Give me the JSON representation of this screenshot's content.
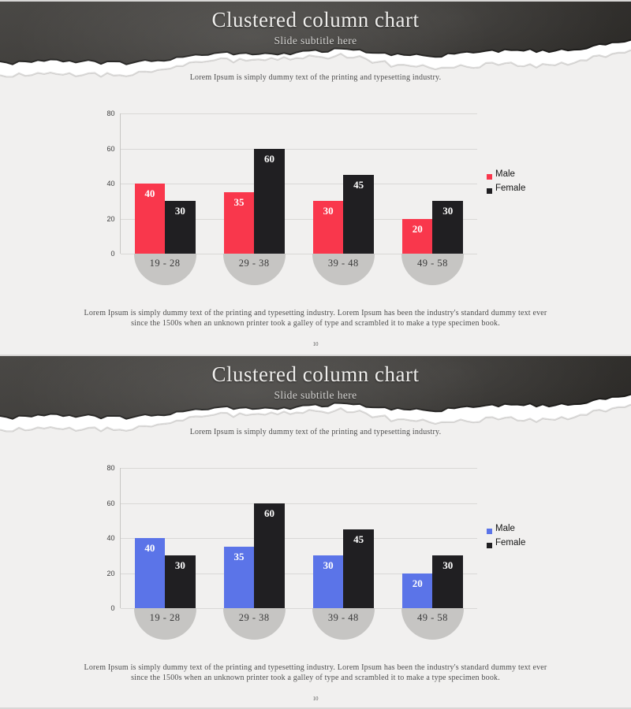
{
  "slides": [
    {
      "header": {
        "title": "Clustered column chart",
        "subtitle": "Slide subtitle here"
      },
      "intro": "Lorem Ipsum is simply dummy text of the printing and typesetting industry.",
      "footer_lines": [
        "Lorem Ipsum is simply dummy text of the printing and typesetting industry. Lorem Ipsum has been the industry's standard dummy text ever",
        "since the 1500s when an unknown printer took a galley of type and scrambled it to make a type specimen book."
      ],
      "page_number": "10"
    },
    {
      "header": {
        "title": "Clustered column chart",
        "subtitle": "Slide subtitle here"
      },
      "intro": "Lorem Ipsum is simply dummy text of the printing and typesetting industry.",
      "footer_lines": [
        "Lorem Ipsum is simply dummy text of the printing and typesetting industry. Lorem Ipsum has been the industry's standard dummy text ever",
        "since the 1500s when an unknown printer took a galley of type and scrambled it to make a type specimen book."
      ],
      "page_number": "10"
    }
  ],
  "chart_data": [
    {
      "type": "bar",
      "title": "",
      "categories": [
        "19 - 28",
        "29 - 38",
        "39 - 48",
        "49 - 58"
      ],
      "series": [
        {
          "name": "Male",
          "color": "#f9374c",
          "values": [
            40,
            35,
            30,
            20
          ]
        },
        {
          "name": "Female",
          "color": "#201f22",
          "values": [
            30,
            60,
            45,
            30
          ]
        }
      ],
      "xlabel": "",
      "ylabel": "",
      "ylim": [
        0,
        80
      ],
      "yticks": [
        0,
        20,
        40,
        60,
        80
      ],
      "grid": true,
      "legend_position": "right",
      "label_color": "#ffffff",
      "category_badge_color": "#c6c5c3"
    },
    {
      "type": "bar",
      "title": "",
      "categories": [
        "19 - 28",
        "29 - 38",
        "39 - 48",
        "49 - 58"
      ],
      "series": [
        {
          "name": "Male",
          "color": "#5b74e8",
          "values": [
            40,
            35,
            30,
            20
          ]
        },
        {
          "name": "Female",
          "color": "#201f22",
          "values": [
            30,
            60,
            45,
            30
          ]
        }
      ],
      "xlabel": "",
      "ylabel": "",
      "ylim": [
        0,
        80
      ],
      "yticks": [
        0,
        20,
        40,
        60,
        80
      ],
      "grid": true,
      "legend_position": "right",
      "label_color": "#ffffff",
      "category_badge_color": "#c6c5c3"
    }
  ]
}
